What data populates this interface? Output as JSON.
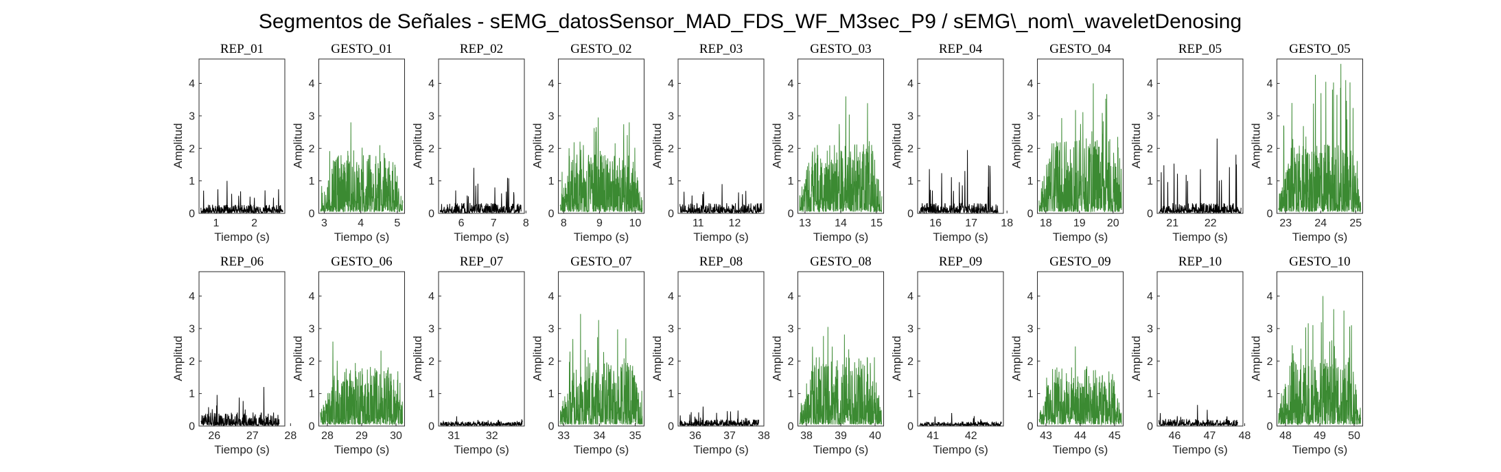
{
  "figure": {
    "title": "Segmentos de Señales - sEMG_datosSensor_MAD_FDS_WF_M3sec_P9 / sEMG\\_nom\\_waveletDenosing"
  },
  "colors": {
    "rep": "#000000",
    "gesto": "#3b8a32",
    "axis": "#262626"
  },
  "chart_data": {
    "type": "line",
    "layout": "2 rows x 10 columns of subplots",
    "shared": {
      "xlabel": "Tiempo (s)",
      "ylabel": "Amplitud",
      "ylim": [
        0,
        4.75
      ],
      "yticks": [
        0,
        1,
        2,
        3,
        4
      ],
      "grid": false
    },
    "panels": [
      {
        "title": "REP_01",
        "kind": "rep",
        "xlim": [
          0.55,
          2.8
        ],
        "xticks": [
          1,
          2
        ],
        "segment": [
          0.6,
          2.75
        ],
        "peak": 1.0,
        "base": 0.25
      },
      {
        "title": "GESTO_01",
        "kind": "gesto",
        "xlim": [
          2.85,
          5.2
        ],
        "xticks": [
          3,
          4,
          5
        ],
        "segment": [
          2.9,
          5.15
        ],
        "peak": 2.8,
        "base": 1.1
      },
      {
        "title": "REP_02",
        "kind": "rep",
        "xlim": [
          5.3,
          7.95
        ],
        "xticks": [
          6,
          7,
          8
        ],
        "segment": [
          5.35,
          7.85
        ],
        "peak": 1.4,
        "base": 0.3
      },
      {
        "title": "GESTO_02",
        "kind": "gesto",
        "xlim": [
          7.85,
          10.25
        ],
        "xticks": [
          8,
          9,
          10
        ],
        "segment": [
          7.9,
          10.2
        ],
        "peak": 2.95,
        "base": 1.1
      },
      {
        "title": "REP_03",
        "kind": "rep",
        "xlim": [
          10.45,
          12.8
        ],
        "xticks": [
          11,
          12
        ],
        "segment": [
          10.5,
          12.75
        ],
        "peak": 0.9,
        "base": 0.3
      },
      {
        "title": "GESTO_03",
        "kind": "gesto",
        "xlim": [
          12.8,
          15.2
        ],
        "xticks": [
          13,
          14,
          15
        ],
        "segment": [
          12.85,
          15.15
        ],
        "peak": 3.6,
        "base": 1.3
      },
      {
        "title": "REP_04",
        "kind": "rep",
        "xlim": [
          15.5,
          17.9
        ],
        "xticks": [
          16,
          17,
          18
        ],
        "segment": [
          15.55,
          17.75
        ],
        "peak": 1.95,
        "base": 0.3
      },
      {
        "title": "GESTO_04",
        "kind": "gesto",
        "xlim": [
          17.75,
          20.3
        ],
        "xticks": [
          18,
          19,
          20
        ],
        "segment": [
          17.8,
          20.25
        ],
        "peak": 4.0,
        "base": 1.4
      },
      {
        "title": "REP_05",
        "kind": "rep",
        "xlim": [
          20.6,
          22.85
        ],
        "xticks": [
          21,
          22
        ],
        "segment": [
          20.65,
          22.8
        ],
        "peak": 2.3,
        "base": 0.3
      },
      {
        "title": "GESTO_05",
        "kind": "gesto",
        "xlim": [
          22.75,
          25.2
        ],
        "xticks": [
          23,
          24,
          25
        ],
        "segment": [
          22.8,
          25.15
        ],
        "peak": 4.6,
        "base": 1.3
      },
      {
        "title": "REP_06",
        "kind": "rep",
        "xlim": [
          25.6,
          27.85
        ],
        "xticks": [
          26,
          27,
          28
        ],
        "segment": [
          25.65,
          27.7
        ],
        "peak": 1.2,
        "base": 0.4
      },
      {
        "title": "GESTO_06",
        "kind": "gesto",
        "xlim": [
          27.75,
          30.25
        ],
        "xticks": [
          28,
          29,
          30
        ],
        "segment": [
          27.8,
          30.2
        ],
        "peak": 2.6,
        "base": 1.1
      },
      {
        "title": "REP_07",
        "kind": "rep",
        "xlim": [
          30.6,
          32.85
        ],
        "xticks": [
          31,
          32
        ],
        "segment": [
          30.65,
          32.8
        ],
        "peak": 0.3,
        "base": 0.12
      },
      {
        "title": "GESTO_07",
        "kind": "gesto",
        "xlim": [
          32.85,
          35.25
        ],
        "xticks": [
          33,
          34,
          35
        ],
        "segment": [
          32.9,
          35.2
        ],
        "peak": 3.45,
        "base": 1.2
      },
      {
        "title": "REP_08",
        "kind": "rep",
        "xlim": [
          35.5,
          38.0
        ],
        "xticks": [
          36,
          37,
          38
        ],
        "segment": [
          35.55,
          37.85
        ],
        "peak": 0.6,
        "base": 0.18
      },
      {
        "title": "GESTO_08",
        "kind": "gesto",
        "xlim": [
          37.75,
          40.25
        ],
        "xticks": [
          38,
          39,
          40
        ],
        "segment": [
          37.8,
          40.2
        ],
        "peak": 3.05,
        "base": 1.3
      },
      {
        "title": "REP_09",
        "kind": "rep",
        "xlim": [
          40.6,
          42.85
        ],
        "xticks": [
          41,
          42
        ],
        "segment": [
          40.65,
          42.8
        ],
        "peak": 0.4,
        "base": 0.12
      },
      {
        "title": "GESTO_09",
        "kind": "gesto",
        "xlim": [
          42.75,
          45.25
        ],
        "xticks": [
          43,
          44,
          45
        ],
        "segment": [
          42.8,
          45.2
        ],
        "peak": 2.45,
        "base": 1.1
      },
      {
        "title": "REP_10",
        "kind": "rep",
        "xlim": [
          45.5,
          47.95
        ],
        "xticks": [
          46,
          47,
          48
        ],
        "segment": [
          45.55,
          47.8
        ],
        "peak": 0.65,
        "base": 0.2
      },
      {
        "title": "GESTO_10",
        "kind": "gesto",
        "xlim": [
          47.75,
          50.25
        ],
        "xticks": [
          48,
          49,
          50
        ],
        "segment": [
          47.8,
          50.2
        ],
        "peak": 4.0,
        "base": 1.3
      }
    ]
  }
}
